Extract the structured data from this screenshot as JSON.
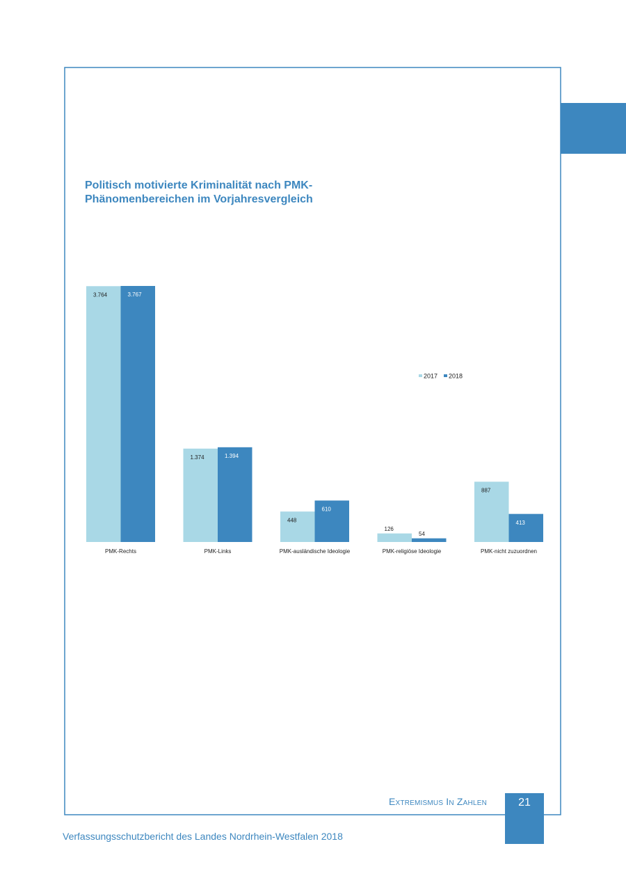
{
  "chart_data": {
    "type": "bar",
    "title": "Politisch motivierte Kriminalität nach PMK-Phänomenbereichen im Vorjahresvergleich",
    "categories": [
      "PMK-Rechts",
      "PMK-Links",
      "PMK-ausländische Ideologie",
      "PMK-religiöse Ideologie",
      "PMK-nicht zuzuordnen"
    ],
    "series": [
      {
        "name": "2017",
        "color": "#a9d8e6",
        "values": [
          3764,
          1374,
          448,
          126,
          887
        ],
        "value_labels": [
          "3.764",
          "1.374",
          "448",
          "126",
          "887"
        ]
      },
      {
        "name": "2018",
        "color": "#3d87bf",
        "values": [
          3767,
          1394,
          610,
          54,
          413
        ],
        "value_labels": [
          "3.767",
          "1.394",
          "610",
          "54",
          "413"
        ]
      }
    ],
    "legend": "center-right"
  },
  "section": "Extremismus In Zahlen",
  "page_number": "21",
  "footer": "Verfassungsschutzbericht des Landes Nordrhein-Westfalen 2018"
}
